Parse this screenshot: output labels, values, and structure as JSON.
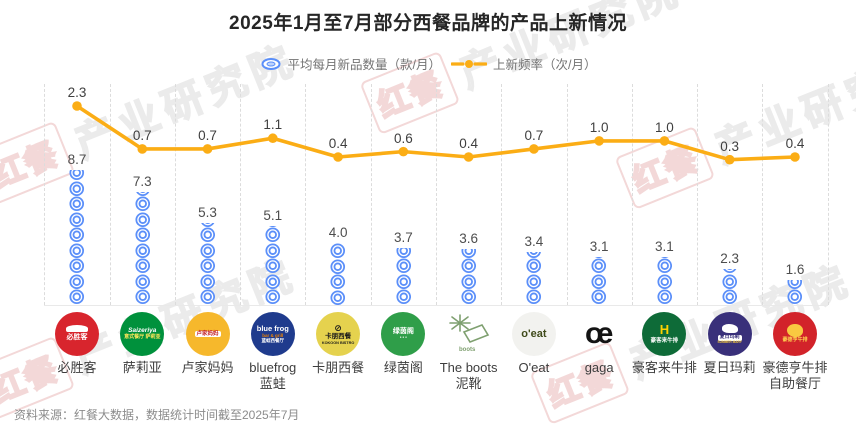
{
  "title": "2025年1月至7月部分西餐品牌的产品上新情况",
  "legend": {
    "avg_label": "平均每月新品数量（款/月）",
    "freq_label": "上新频率（次/月）"
  },
  "chart_data": {
    "type": "pictorial-bar+line",
    "title": "2025年1月至7月部分西餐品牌的产品上新情况",
    "categories": [
      "必胜客",
      "萨莉亚",
      "卢家妈妈",
      "bluefrog蓝蛙",
      "卡朋西餐",
      "绿茵阁",
      "The boots泥靴",
      "O'eat",
      "gaga",
      "豪客来牛排",
      "夏日玛莉",
      "豪德亨牛排自助餐厅"
    ],
    "series": [
      {
        "name": "平均每月新品数量（款/月）",
        "type": "pictorial-bar",
        "symbol": "blue-ring-stack",
        "color": "#5B8FF9",
        "values": [
          8.7,
          7.3,
          5.3,
          5.1,
          4.0,
          3.7,
          3.6,
          3.4,
          3.1,
          3.1,
          2.3,
          1.6
        ]
      },
      {
        "name": "上新频率（次/月）",
        "type": "line",
        "color": "#FBAD15",
        "values": [
          2.3,
          0.7,
          0.7,
          1.1,
          0.4,
          0.6,
          0.4,
          0.7,
          1.0,
          1.0,
          0.3,
          0.4
        ]
      }
    ],
    "legend_position": "top",
    "gridlines": "vertical-dashed",
    "value_labels": "shown",
    "y_axis_visible": false
  },
  "brands": [
    {
      "label_lines": [
        "必胜客"
      ],
      "logo": {
        "type": "circle",
        "bg": "#D8252D",
        "deco": "hat",
        "l1": "必胜客",
        "l1c": "#FFFFFF",
        "l1s": 7
      }
    },
    {
      "label_lines": [
        "萨莉亚"
      ],
      "logo": {
        "type": "circle",
        "bg": "#00913C",
        "l1": "Saizeriya",
        "l1c": "#FFFFFF",
        "l1s": 6.5,
        "l1i": true,
        "l2": "意式餐厅 萨莉亚",
        "l2c": "#FFE75A",
        "l2s": 5
      }
    },
    {
      "label_lines": [
        "卢家妈妈"
      ],
      "logo": {
        "type": "circle",
        "bg": "#F6B82C",
        "l1": "卢家妈妈",
        "l1c": "#C4252B",
        "l1s": 5.5,
        "l1bg": "#FFFFFF"
      }
    },
    {
      "label_lines": [
        "bluefrog",
        "蓝蛙"
      ],
      "logo": {
        "type": "circle",
        "bg": "#1F3B8D",
        "l1": "blue frog",
        "l1c": "#FFFFFF",
        "l1s": 7.5,
        "l2": "bar & grill",
        "l2c": "#F08300",
        "l2s": 4.5,
        "l3": "蓝蛙西餐厅",
        "l3c": "#FFFFFF",
        "l3s": 4.5
      }
    },
    {
      "label_lines": [
        "卡朋西餐"
      ],
      "logo": {
        "type": "circle",
        "bg": "#E5D24E",
        "deco": "kokoon",
        "l1": "卡朋西餐",
        "l1c": "#1A1A1A",
        "l1s": 6.5,
        "l2": "KOKOON BISTRO",
        "l2c": "#1A1A1A",
        "l2s": 3.8
      }
    },
    {
      "label_lines": [
        "绿茵阁"
      ],
      "logo": {
        "type": "circle",
        "bg": "#2F9E49",
        "l1": "绿茵阁",
        "l1c": "#FFFFFF",
        "l1s": 7,
        "l2": "● ● ●",
        "l2c": "#FFFFFF",
        "l2s": 3
      }
    },
    {
      "label_lines": [
        "The boots",
        "泥靴"
      ],
      "logo": {
        "type": "boots",
        "caption": "boots"
      }
    },
    {
      "label_lines": [
        "O'eat"
      ],
      "logo": {
        "type": "text",
        "bg": "#F2F2EF",
        "text": "o'eat",
        "color": "#3F4A1A",
        "size": 11,
        "weight": 800
      }
    },
    {
      "label_lines": [
        "gaga"
      ],
      "logo": {
        "type": "text",
        "bg": "",
        "text": "œ",
        "color": "#141414",
        "size": 30,
        "weight": 700
      }
    },
    {
      "label_lines": [
        "豪客来牛排"
      ],
      "logo": {
        "type": "circle",
        "bg": "#0E6B38",
        "deco": "h",
        "l1": "豪客来牛排",
        "l1c": "#FFFFFF",
        "l1s": 5.5
      }
    },
    {
      "label_lines": [
        "夏日玛莉"
      ],
      "logo": {
        "type": "circle",
        "bg": "#39307A",
        "deco": "dino",
        "l1": "夏日玛莉",
        "l1c": "#39307A",
        "l1s": 5,
        "l1bg": "#FFFFFF",
        "l2": "SUMMER MARY",
        "l2c": "#F3C83C",
        "l2s": 3.2
      }
    },
    {
      "label_lines": [
        "豪德亨牛排",
        "自助餐厅"
      ],
      "logo": {
        "type": "circle",
        "bg": "#D2232A",
        "deco": "blob",
        "l1": "豪德亨牛排",
        "l1c": "#FFD54F",
        "l1s": 5
      }
    }
  ],
  "footer": {
    "source": "资料来源：红餐大数据，数据统计时间截至2025年7月"
  },
  "watermark": {
    "logo": "红餐",
    "text": "产业研究院"
  }
}
